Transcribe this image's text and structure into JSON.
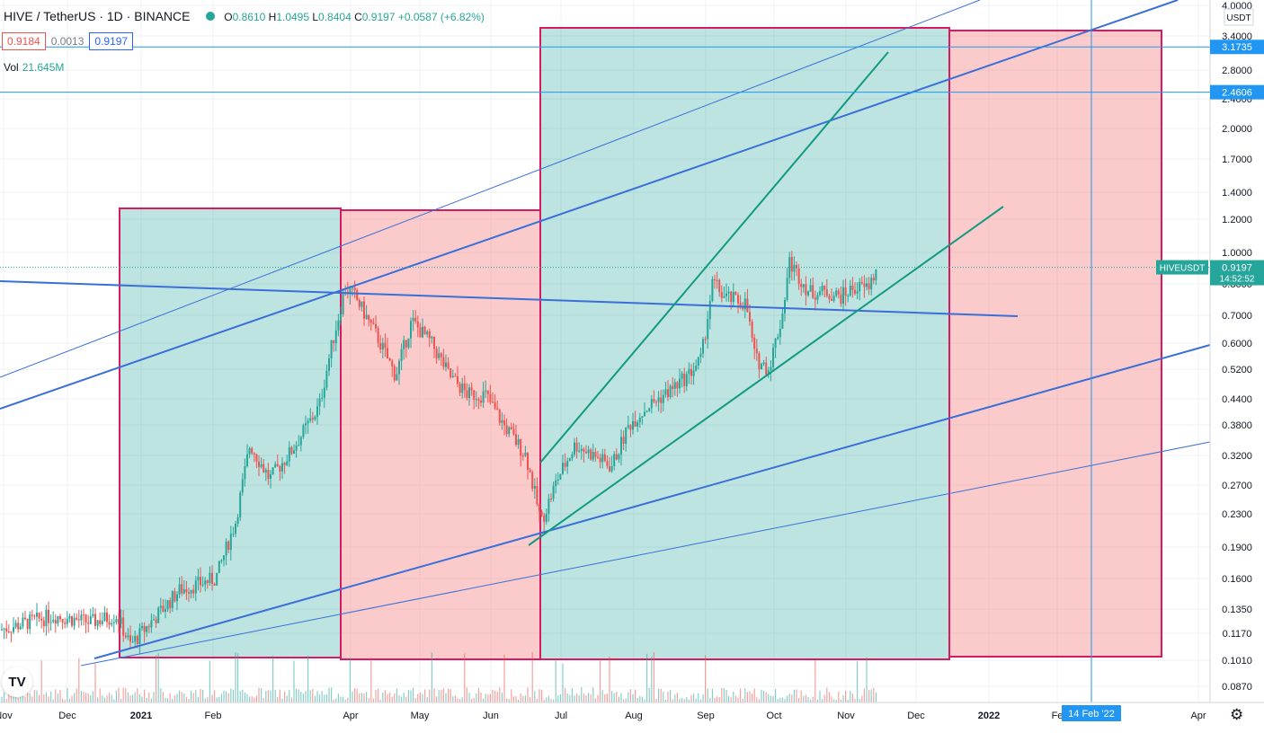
{
  "header": {
    "symbol": "HIVE / TetherUS · 1D · BINANCE",
    "ohlc": {
      "o_label": "O",
      "o": "0.8610",
      "h_label": "H",
      "h": "1.0495",
      "l_label": "L",
      "l": "0.8404",
      "c_label": "C",
      "c": "0.9197",
      "change": "+0.0587 (+6.82%)"
    },
    "sell_price": "0.9184",
    "spread": "0.0013",
    "buy_price": "0.9197",
    "vol_label": "Vol",
    "vol_value": "21.645M"
  },
  "axis": {
    "currency_label": "USDT",
    "price_ticks": [
      "4.0000",
      "3.4000",
      "2.8000",
      "2.4000",
      "2.0000",
      "1.7000",
      "1.4000",
      "1.2000",
      "1.0000",
      "0.8000",
      "0.7000",
      "0.6000",
      "0.5200",
      "0.4400",
      "0.3800",
      "0.3200",
      "0.2700",
      "0.2300",
      "0.1900",
      "0.1600",
      "0.1350",
      "0.1170",
      "0.1010",
      "0.0870"
    ],
    "price_ticks_y": [
      6,
      40,
      78,
      110,
      143,
      177,
      214,
      244,
      281,
      316,
      351,
      382,
      411,
      444,
      473,
      507,
      540,
      572,
      609,
      644,
      678,
      705,
      735,
      764
    ],
    "time_ticks": [
      {
        "label": "Nov",
        "x": 4
      },
      {
        "label": "Dec",
        "x": 75
      },
      {
        "label": "2021",
        "x": 157
      },
      {
        "label": "Feb",
        "x": 237
      },
      {
        "label": "Apr",
        "x": 390
      },
      {
        "label": "May",
        "x": 467
      },
      {
        "label": "Jun",
        "x": 546
      },
      {
        "label": "Jul",
        "x": 624
      },
      {
        "label": "Aug",
        "x": 705
      },
      {
        "label": "Sep",
        "x": 785
      },
      {
        "label": "Oct",
        "x": 861
      },
      {
        "label": "Nov",
        "x": 941
      },
      {
        "label": "Dec",
        "x": 1019
      },
      {
        "label": "2022",
        "x": 1100
      },
      {
        "label": "Fe",
        "x": 1176
      },
      {
        "label": "Apr",
        "x": 1333
      }
    ],
    "crosshair_date": "14 Feb '22",
    "horizontal_levels": [
      {
        "value": "3.1735",
        "color": "#2196f3"
      },
      {
        "value": "2.4606",
        "color": "#2196f3"
      }
    ],
    "last_price_label": "HIVEUSDT",
    "last_price": "0.9197",
    "countdown": "14:52:52"
  },
  "colors": {
    "up": "#26a69a",
    "down": "#ef5350",
    "trend_blue": "#3a6fd8",
    "trend_green": "#129a80",
    "zone_green": "rgba(38,166,154,0.30)",
    "zone_red": "rgba(239,83,80,0.30)",
    "zone_border": "#d81b60"
  },
  "chart_data": {
    "type": "candlestick",
    "title": "HIVE / TetherUS · 1D · BINANCE",
    "y_scale": "log",
    "ylim": [
      0.08,
      4.0
    ],
    "x": [
      "2020-11",
      "2020-12",
      "2021-01",
      "2021-02",
      "2021-03",
      "2021-04",
      "2021-05",
      "2021-06",
      "2021-07",
      "2021-08",
      "2021-09",
      "2021-10",
      "2021-11-15"
    ],
    "close_approx": [
      0.125,
      0.13,
      0.115,
      0.16,
      0.33,
      0.82,
      0.65,
      0.45,
      0.25,
      0.42,
      0.75,
      0.95,
      0.9197
    ],
    "last": {
      "open": 0.861,
      "high": 1.0495,
      "low": 0.8404,
      "close": 0.9197
    },
    "volume_last": "21.645M"
  },
  "icons": {
    "status_dot": "market-open-dot",
    "logo": "tradingview-logo-icon",
    "logo_text": "TV",
    "settings": "gear-icon",
    "settings_glyph": "⚙"
  }
}
